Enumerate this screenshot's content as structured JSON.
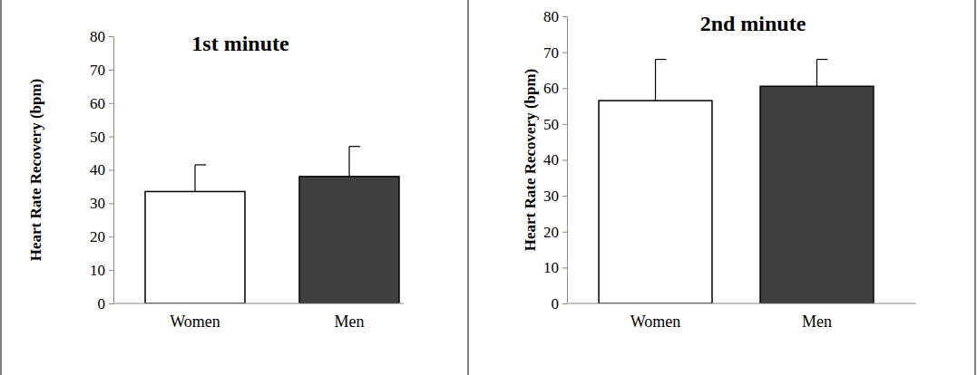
{
  "chart_data": [
    {
      "type": "bar",
      "title": "1st minute",
      "ylabel": "Heart Rate Recovery (bpm)",
      "categories": [
        "Women",
        "Men"
      ],
      "values": [
        33.5,
        38
      ],
      "errors": [
        8,
        9
      ],
      "colors": [
        "#ffffff",
        "#404040"
      ],
      "ylim": [
        0,
        80
      ],
      "yticks": [
        0,
        10,
        20,
        30,
        40,
        50,
        60,
        70,
        80
      ]
    },
    {
      "type": "bar",
      "title": "2nd minute",
      "ylabel": "Heart Rate Recovery (bpm)",
      "categories": [
        "Women",
        "Men"
      ],
      "values": [
        56.5,
        60.5
      ],
      "errors": [
        11.5,
        7.5
      ],
      "colors": [
        "#ffffff",
        "#404040"
      ],
      "ylim": [
        0,
        80
      ],
      "yticks": [
        0,
        10,
        20,
        30,
        40,
        50,
        60,
        70,
        80
      ]
    }
  ]
}
